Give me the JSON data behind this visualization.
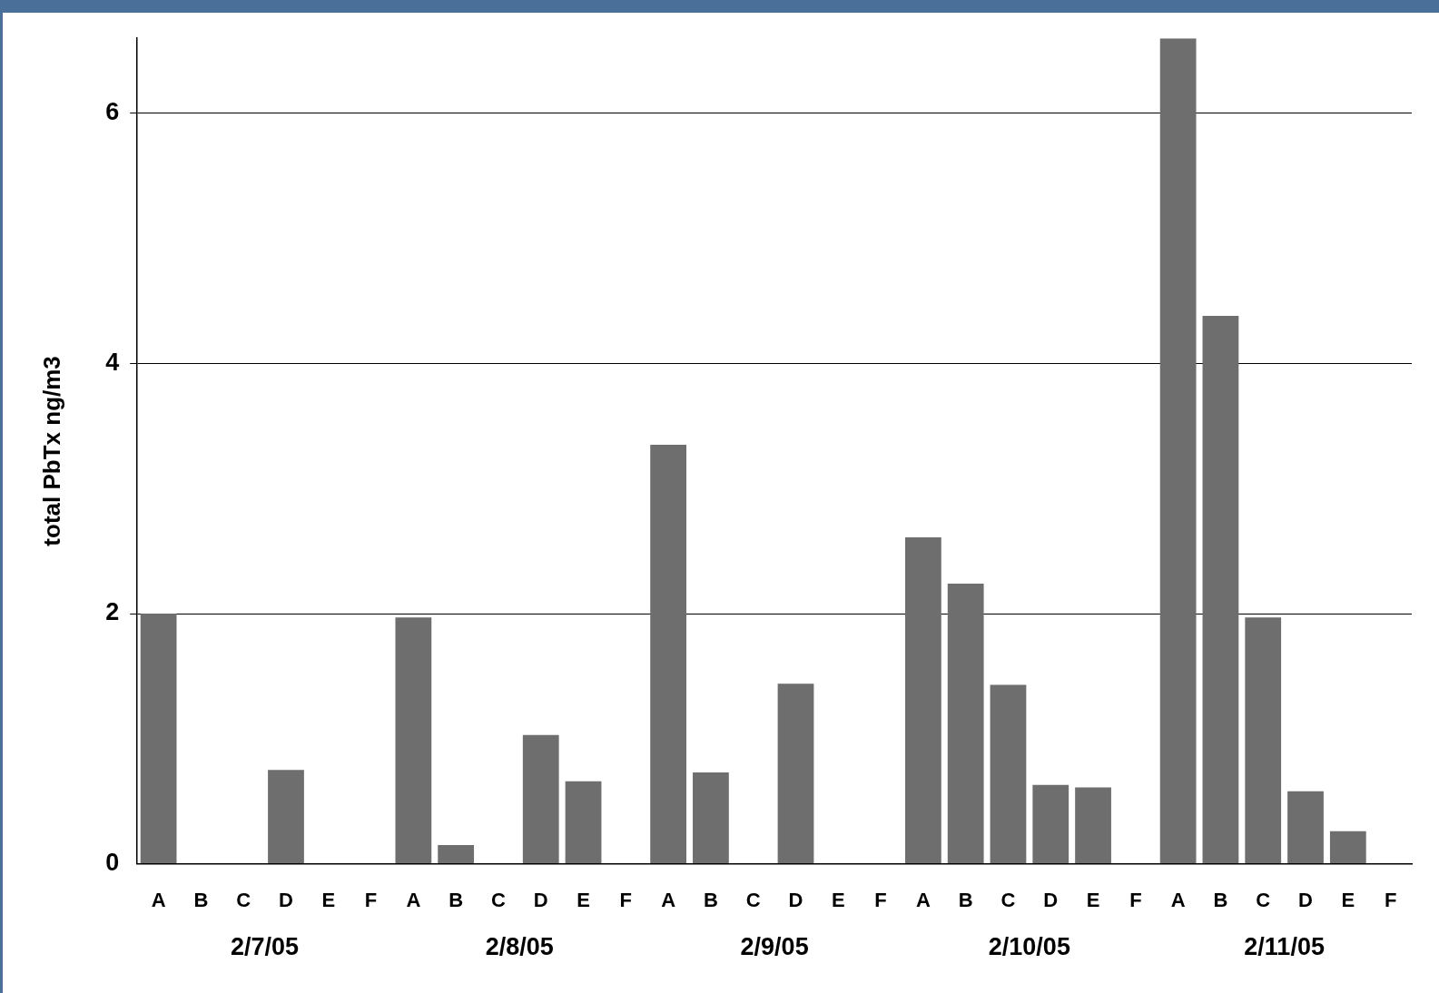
{
  "chart_data": {
    "type": "bar",
    "ylabel": "total PbTx ng/m3",
    "categories": [
      "A",
      "B",
      "C",
      "D",
      "E",
      "F",
      "A",
      "B",
      "C",
      "D",
      "E",
      "F",
      "A",
      "B",
      "C",
      "D",
      "E",
      "F",
      "A",
      "B",
      "C",
      "D",
      "E",
      "F",
      "A",
      "B",
      "C",
      "D",
      "E",
      "F"
    ],
    "values": [
      2.0,
      null,
      null,
      0.75,
      null,
      null,
      1.97,
      0.15,
      null,
      1.03,
      0.66,
      null,
      3.35,
      0.73,
      null,
      1.44,
      null,
      null,
      2.61,
      2.24,
      1.43,
      0.63,
      0.61,
      null,
      6.6,
      4.38,
      1.97,
      0.58,
      0.26,
      null
    ],
    "color": "#6e6e6e",
    "ylim": [
      0,
      6.6
    ],
    "yticks": [
      0,
      2,
      4,
      6
    ],
    "grid": "y",
    "legend": false,
    "annotations": [
      "2/7/05",
      "2/8/05",
      "2/9/05",
      "2/10/05",
      "2/11/05"
    ]
  }
}
